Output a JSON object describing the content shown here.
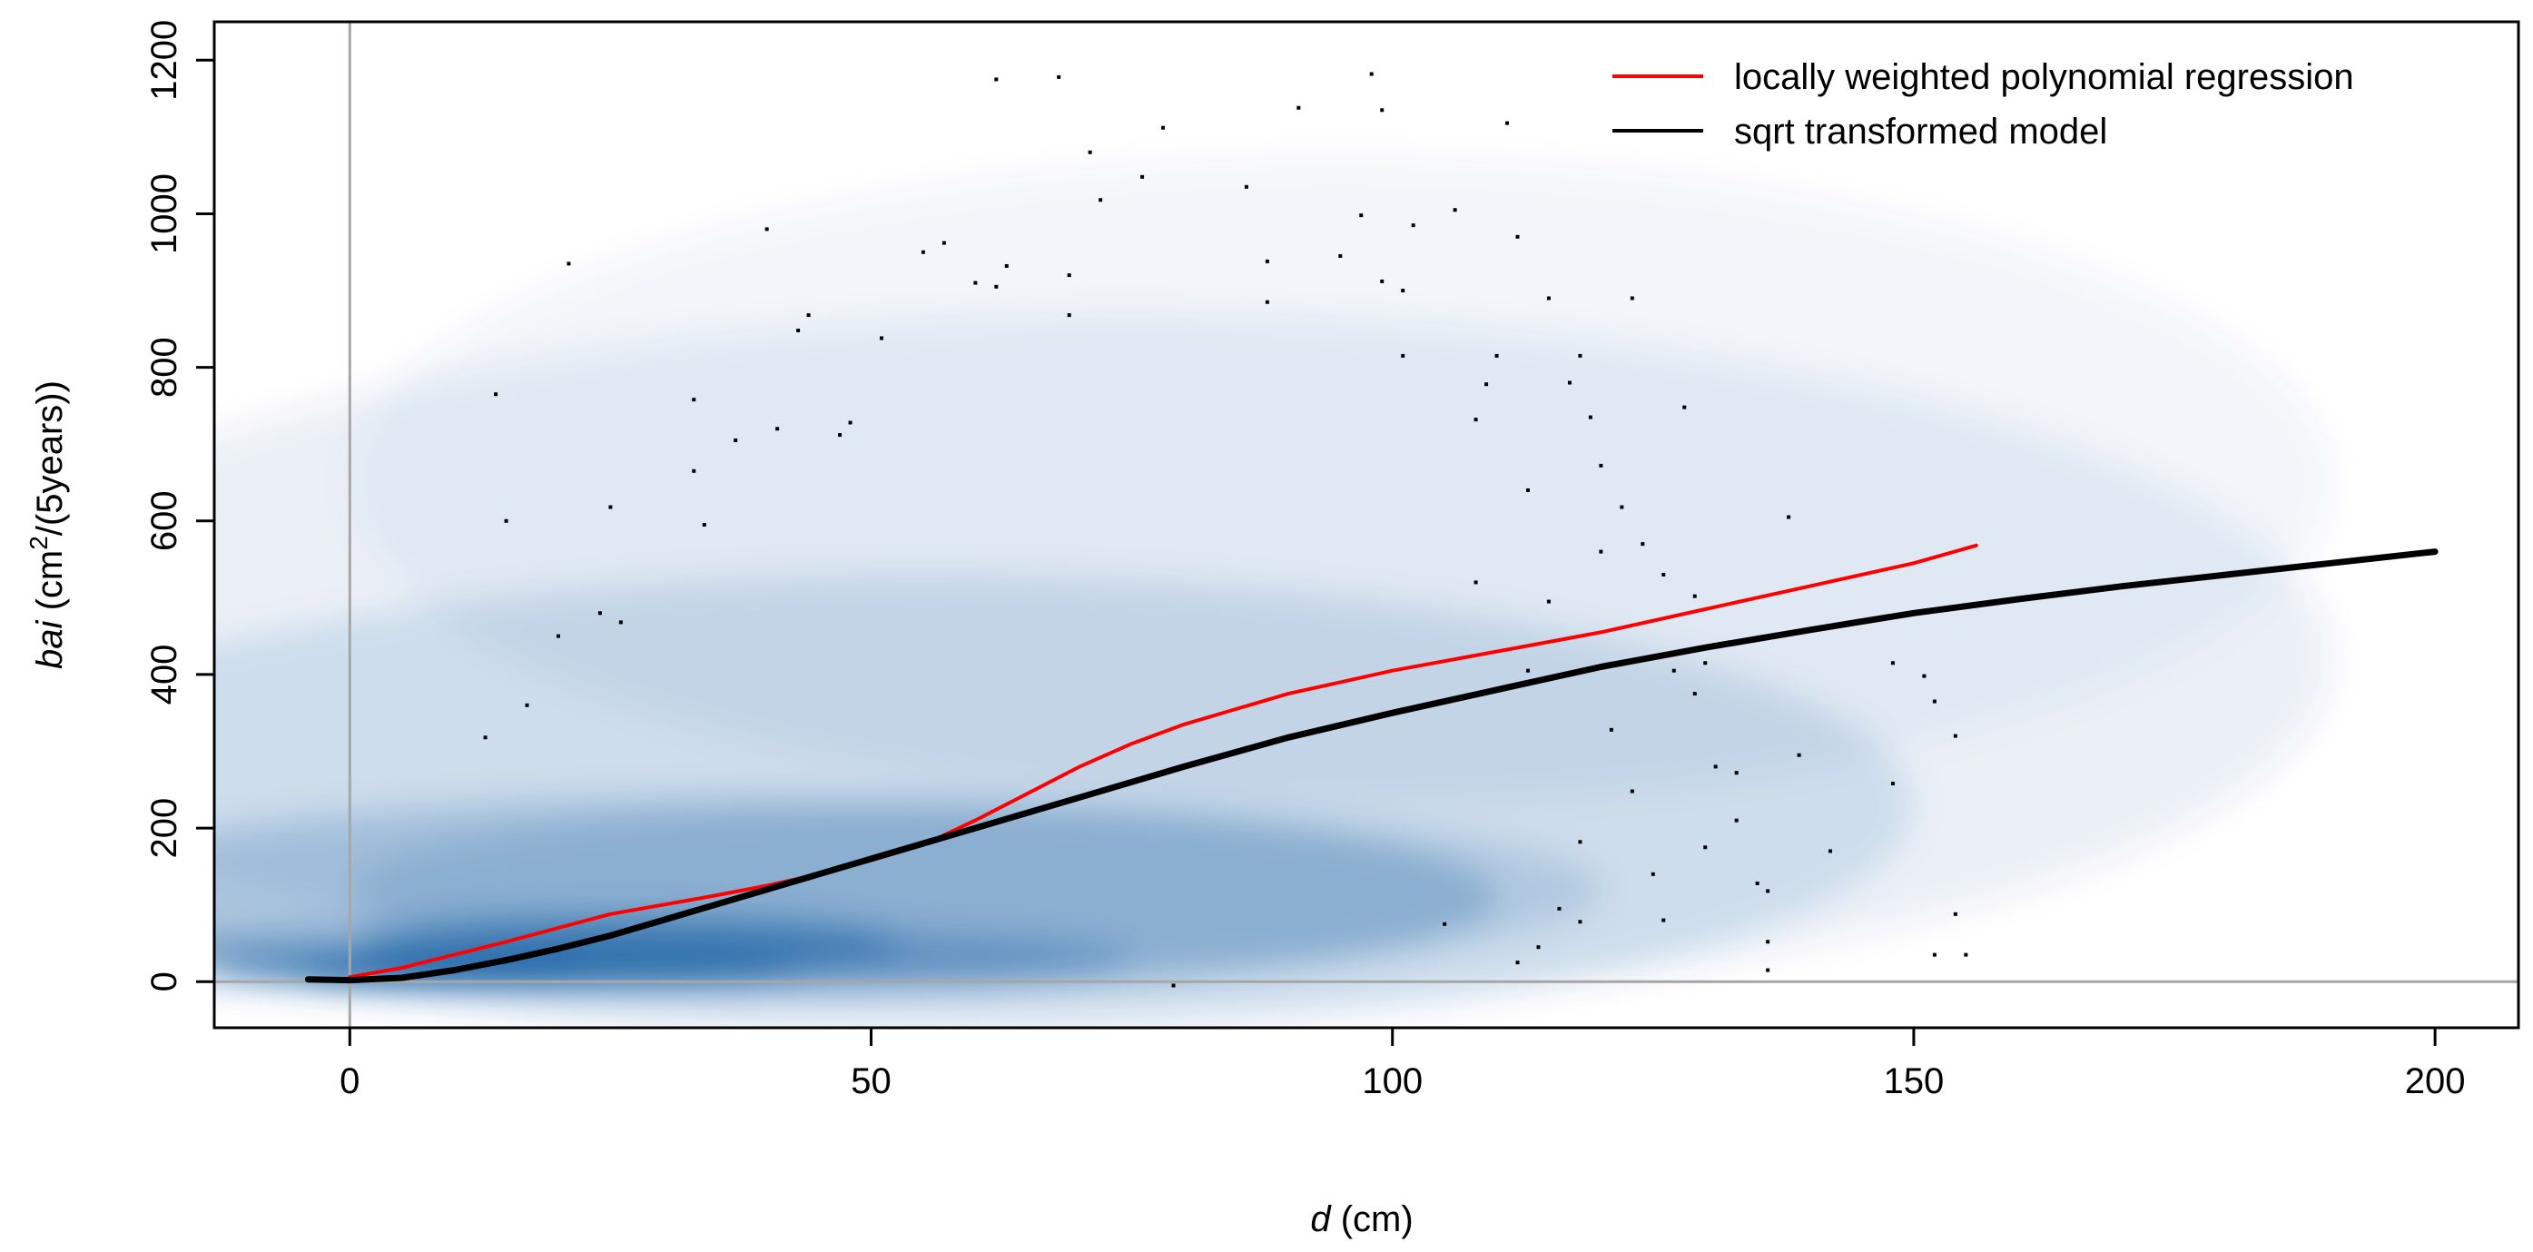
{
  "chart_data": {
    "type": "scatter",
    "xlabel": {
      "var": "d",
      "unit": " (cm)"
    },
    "ylabel": {
      "var": "bai",
      "unit_pre": " (cm",
      "unit_sup": "2",
      "unit_post": "/(5years))"
    },
    "xlim": [
      -13,
      208
    ],
    "ylim": [
      -60,
      1250
    ],
    "x_ticks": [
      0,
      50,
      100,
      150,
      200
    ],
    "y_ticks": [
      0,
      200,
      400,
      600,
      800,
      1000,
      1200
    ],
    "reference_lines": {
      "vertical_x": 0,
      "horizontal_y": 0,
      "color": "#a6a6a6"
    },
    "density_color": "#08519c",
    "legend": {
      "position": "top-right",
      "entries": [
        {
          "label": "locally weighted polynomial regression",
          "color": "#ff0000"
        },
        {
          "label": "sqrt transformed model",
          "color": "#000000"
        }
      ]
    },
    "series": [
      {
        "name": "locally weighted polynomial regression",
        "color": "#ff0000",
        "points": [
          [
            0,
            6
          ],
          [
            5,
            18
          ],
          [
            10,
            35
          ],
          [
            15,
            52
          ],
          [
            20,
            70
          ],
          [
            25,
            88
          ],
          [
            30,
            100
          ],
          [
            35,
            112
          ],
          [
            40,
            125
          ],
          [
            45,
            140
          ],
          [
            50,
            158
          ],
          [
            55,
            178
          ],
          [
            60,
            210
          ],
          [
            65,
            245
          ],
          [
            70,
            280
          ],
          [
            75,
            310
          ],
          [
            80,
            335
          ],
          [
            85,
            355
          ],
          [
            90,
            375
          ],
          [
            95,
            390
          ],
          [
            100,
            405
          ],
          [
            110,
            430
          ],
          [
            120,
            455
          ],
          [
            130,
            485
          ],
          [
            140,
            515
          ],
          [
            150,
            545
          ],
          [
            156,
            568
          ]
        ]
      },
      {
        "name": "sqrt transformed model",
        "color": "#000000",
        "points": [
          [
            -4,
            3
          ],
          [
            0,
            2
          ],
          [
            5,
            5
          ],
          [
            10,
            15
          ],
          [
            15,
            28
          ],
          [
            20,
            43
          ],
          [
            25,
            60
          ],
          [
            30,
            80
          ],
          [
            35,
            100
          ],
          [
            40,
            120
          ],
          [
            45,
            140
          ],
          [
            50,
            160
          ],
          [
            55,
            180
          ],
          [
            60,
            200
          ],
          [
            70,
            240
          ],
          [
            80,
            280
          ],
          [
            90,
            318
          ],
          [
            100,
            350
          ],
          [
            110,
            380
          ],
          [
            120,
            410
          ],
          [
            130,
            435
          ],
          [
            140,
            458
          ],
          [
            150,
            480
          ],
          [
            160,
            498
          ],
          [
            170,
            515
          ],
          [
            180,
            530
          ],
          [
            190,
            545
          ],
          [
            200,
            560
          ]
        ]
      }
    ],
    "outlier_points": [
      [
        13,
        318
      ],
      [
        14,
        765
      ],
      [
        15,
        600
      ],
      [
        17,
        360
      ],
      [
        20,
        450
      ],
      [
        21,
        935
      ],
      [
        24,
        480
      ],
      [
        25,
        618
      ],
      [
        26,
        468
      ],
      [
        33,
        758
      ],
      [
        33,
        665
      ],
      [
        34,
        595
      ],
      [
        37,
        705
      ],
      [
        40,
        980
      ],
      [
        41,
        720
      ],
      [
        43,
        848
      ],
      [
        44,
        868
      ],
      [
        47,
        712
      ],
      [
        48,
        728
      ],
      [
        51,
        838
      ],
      [
        55,
        950
      ],
      [
        57,
        962
      ],
      [
        60,
        910
      ],
      [
        62,
        905
      ],
      [
        62,
        1175
      ],
      [
        63,
        932
      ],
      [
        68,
        1178
      ],
      [
        69,
        920
      ],
      [
        69,
        868
      ],
      [
        71,
        1080
      ],
      [
        72,
        1018
      ],
      [
        76,
        1048
      ],
      [
        78,
        1112
      ],
      [
        79,
        -5
      ],
      [
        86,
        1035
      ],
      [
        88,
        938
      ],
      [
        88,
        885
      ],
      [
        91,
        1138
      ],
      [
        95,
        945
      ],
      [
        97,
        998
      ],
      [
        98,
        1182
      ],
      [
        99,
        912
      ],
      [
        99,
        1135
      ],
      [
        101,
        900
      ],
      [
        101,
        815
      ],
      [
        102,
        985
      ],
      [
        105,
        75
      ],
      [
        106,
        1005
      ],
      [
        108,
        520
      ],
      [
        108,
        732
      ],
      [
        109,
        778
      ],
      [
        110,
        815
      ],
      [
        111,
        1118
      ],
      [
        112,
        970
      ],
      [
        112,
        25
      ],
      [
        113,
        405
      ],
      [
        113,
        640
      ],
      [
        114,
        45
      ],
      [
        115,
        495
      ],
      [
        115,
        890
      ],
      [
        116,
        95
      ],
      [
        117,
        780
      ],
      [
        118,
        182
      ],
      [
        118,
        78
      ],
      [
        118,
        815
      ],
      [
        119,
        735
      ],
      [
        120,
        560
      ],
      [
        120,
        672
      ],
      [
        121,
        328
      ],
      [
        122,
        618
      ],
      [
        123,
        890
      ],
      [
        123,
        248
      ],
      [
        124,
        570
      ],
      [
        125,
        140
      ],
      [
        126,
        80
      ],
      [
        126,
        530
      ],
      [
        127,
        405
      ],
      [
        128,
        748
      ],
      [
        129,
        502
      ],
      [
        129,
        375
      ],
      [
        130,
        415
      ],
      [
        130,
        175
      ],
      [
        131,
        280
      ],
      [
        133,
        272
      ],
      [
        133,
        210
      ],
      [
        135,
        128
      ],
      [
        136,
        118
      ],
      [
        136,
        52
      ],
      [
        136,
        15
      ],
      [
        138,
        605
      ],
      [
        139,
        295
      ],
      [
        142,
        170
      ],
      [
        148,
        415
      ],
      [
        148,
        258
      ],
      [
        151,
        398
      ],
      [
        152,
        365
      ],
      [
        152,
        35
      ],
      [
        154,
        88
      ],
      [
        154,
        320
      ],
      [
        155,
        35
      ]
    ]
  }
}
